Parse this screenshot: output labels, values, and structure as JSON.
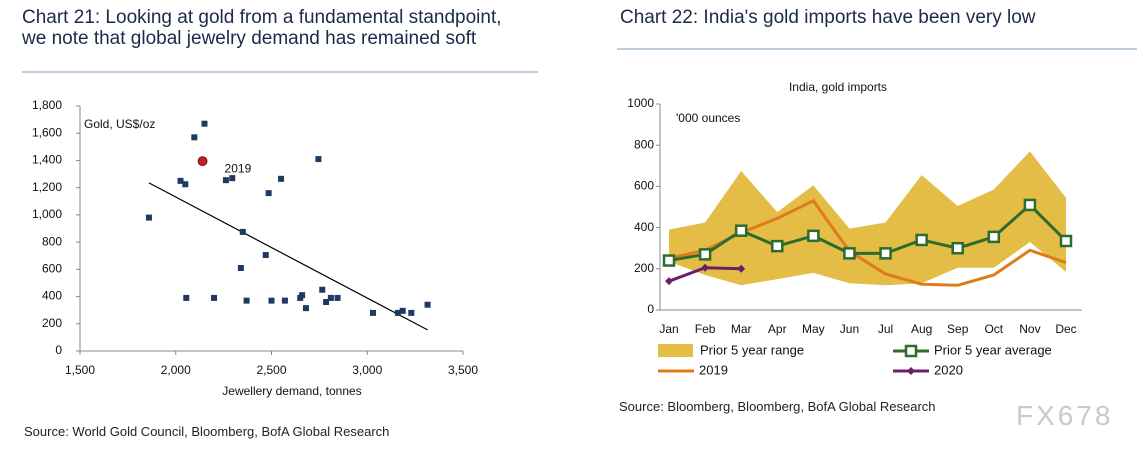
{
  "chart_data": [
    {
      "type": "scatter",
      "title": "Chart 21: Looking at gold from a fundamental standpoint, we note that global jewelry demand has remained soft",
      "y_label": "Gold, US$/oz",
      "x_label": "Jewellery demand, tonnes",
      "source": "Source: World Gold Council, Bloomberg, BofA Global Research",
      "xlim": [
        1500,
        3500
      ],
      "xticks": [
        {
          "value": 1500,
          "label": "1,500"
        },
        {
          "value": 2000,
          "label": "2,000"
        },
        {
          "value": 2500,
          "label": "2,500"
        },
        {
          "value": 3000,
          "label": "3,000"
        },
        {
          "value": 3500,
          "label": "3,500"
        }
      ],
      "ylim": [
        0,
        1800
      ],
      "yticks": [
        0,
        200,
        400,
        600,
        800,
        {
          "value": 1000,
          "label": "1,000"
        },
        {
          "value": 1200,
          "label": "1,200"
        },
        {
          "value": 1400,
          "label": "1,400"
        },
        {
          "value": 1600,
          "label": "1,600"
        },
        {
          "value": 1800,
          "label": "1,800"
        }
      ],
      "color": "#1f3864",
      "x": [
        1860,
        2025,
        2050,
        2097,
        2150,
        2055,
        2200,
        2262,
        2295,
        2350,
        2340,
        2370,
        2470,
        2485,
        2550,
        2500,
        2570,
        2650,
        2660,
        2680,
        2745,
        2765,
        2785,
        2810,
        2845,
        3030,
        3160,
        3185,
        3230,
        3315
      ],
      "y": [
        980,
        1250,
        1225,
        1570,
        1670,
        390,
        390,
        1255,
        1270,
        875,
        610,
        370,
        705,
        1160,
        1265,
        370,
        370,
        390,
        410,
        315,
        1410,
        450,
        360,
        390,
        390,
        280,
        280,
        295,
        280,
        340
      ],
      "highlight": {
        "label": "2019",
        "x": 2140,
        "y": 1395,
        "color": "#c0202a"
      },
      "trend_line": {
        "x": [
          1860,
          3315
        ],
        "y": [
          1235,
          155
        ],
        "color": "#000000"
      }
    },
    {
      "type": "line",
      "title": "Chart 22: India's gold imports have been very low",
      "subtitle": "India, gold imports",
      "y_label": "'000 ounces",
      "source": "Source: Bloomberg, Bloomberg, BofA Global Research",
      "watermark": "FX678",
      "categories": [
        "Jan",
        "Feb",
        "Mar",
        "Apr",
        "May",
        "Jun",
        "Jul",
        "Aug",
        "Sep",
        "Oct",
        "Nov",
        "Dec"
      ],
      "ylim": [
        0,
        1000
      ],
      "yticks": [
        0,
        200,
        400,
        600,
        800,
        1000
      ],
      "range": {
        "name": "Prior 5 year range",
        "color": "#e3bd45",
        "upper": [
          390,
          425,
          675,
          475,
          605,
          395,
          425,
          655,
          505,
          585,
          770,
          545
        ],
        "lower": [
          235,
          170,
          120,
          150,
          180,
          130,
          120,
          130,
          205,
          205,
          330,
          185
        ]
      },
      "series": [
        {
          "name": "Prior 5 year average",
          "color": "#2e6b2e",
          "marker": "square",
          "values": [
            240,
            270,
            385,
            310,
            360,
            275,
            275,
            340,
            300,
            355,
            510,
            335
          ]
        },
        {
          "name": "2019",
          "color": "#e07b1a",
          "marker": "none",
          "values": [
            250,
            290,
            375,
            445,
            530,
            285,
            175,
            125,
            120,
            170,
            290,
            230
          ]
        },
        {
          "name": "2020",
          "color": "#6b1f6b",
          "marker": "diamond",
          "values": [
            140,
            205,
            200,
            null,
            null,
            null,
            null,
            null,
            null,
            null,
            null,
            null
          ]
        }
      ]
    }
  ]
}
